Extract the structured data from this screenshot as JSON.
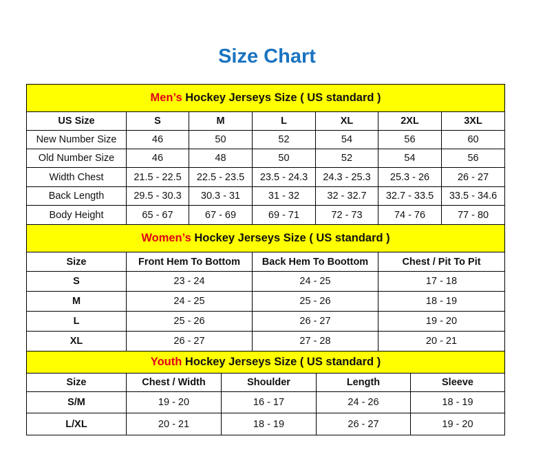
{
  "title": "Size Chart",
  "colors": {
    "title": "#1a73c0",
    "section_bg": "#ffff00",
    "highlight": "#e0001a"
  },
  "mens": {
    "heading_highlight": "Men’s",
    "heading_rest": " Hockey Jerseys Size ( US standard )",
    "headers": [
      "US Size",
      "S",
      "M",
      "L",
      "XL",
      "2XL",
      "3XL"
    ],
    "rows": [
      [
        "New Number Size",
        "46",
        "50",
        "52",
        "54",
        "56",
        "60"
      ],
      [
        "Old Number Size",
        "46",
        "48",
        "50",
        "52",
        "54",
        "56"
      ],
      [
        "Width Chest",
        "21.5 - 22.5",
        "22.5 - 23.5",
        "23.5 - 24.3",
        "24.3 - 25.3",
        "25.3 - 26",
        "26 - 27"
      ],
      [
        "Back Length",
        "29.5 - 30.3",
        "30.3 - 31",
        "31 - 32",
        "32 - 32.7",
        "32.7 - 33.5",
        "33.5 - 34.6"
      ],
      [
        "Body Height",
        "65 - 67",
        "67 - 69",
        "69 - 71",
        "72 - 73",
        "74 - 76",
        "77 - 80"
      ]
    ]
  },
  "womens": {
    "heading_highlight": "Women’s",
    "heading_rest": " Hockey Jerseys Size ( US standard )",
    "headers": [
      "Size",
      "Front Hem To Bottom",
      "Back Hem To Boottom",
      "Chest / Pit To Pit"
    ],
    "rows": [
      [
        "S",
        "23 - 24",
        "24 - 25",
        "17 - 18"
      ],
      [
        "M",
        "24 - 25",
        "25 - 26",
        "18 - 19"
      ],
      [
        "L",
        "25 - 26",
        "26 - 27",
        "19 - 20"
      ],
      [
        "XL",
        "26 - 27",
        "27 - 28",
        "20 - 21"
      ]
    ]
  },
  "youth": {
    "heading_highlight": "Youth",
    "heading_rest": " Hockey Jerseys Size ( US standard )",
    "headers": [
      "Size",
      "Chest / Width",
      "Shoulder",
      "Length",
      "Sleeve"
    ],
    "rows": [
      [
        "S/M",
        "19 - 20",
        "16 - 17",
        "24 - 26",
        "18 - 19"
      ],
      [
        "L/XL",
        "20 - 21",
        "18 - 19",
        "26 - 27",
        "19 - 20"
      ]
    ]
  }
}
